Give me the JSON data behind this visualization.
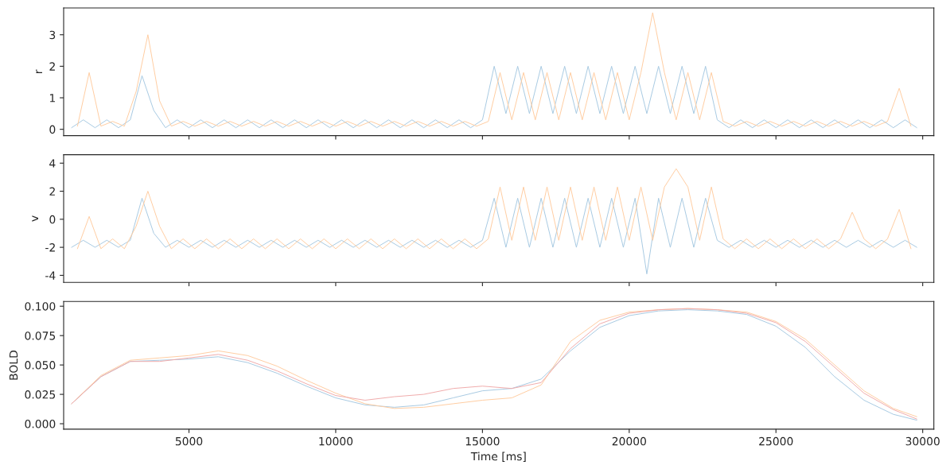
{
  "chart_data": [
    {
      "type": "line",
      "ylabel": "r",
      "xlim": [
        730,
        30380
      ],
      "ylim": [
        -0.2,
        3.85
      ],
      "yticks": [
        0,
        1,
        2,
        3
      ],
      "xticks": [
        5000,
        10000,
        15000,
        20000,
        25000,
        30000
      ],
      "tick_labels": "y",
      "x": [
        1000,
        1400,
        1800,
        2200,
        2600,
        3000,
        3400,
        3800,
        4200,
        4600,
        5000,
        5400,
        5800,
        6200,
        6600,
        7000,
        7400,
        7800,
        8200,
        8600,
        9000,
        9400,
        9800,
        10200,
        10600,
        11000,
        11400,
        11800,
        12200,
        12600,
        13000,
        13400,
        13800,
        14200,
        14600,
        15000,
        15400,
        15800,
        16200,
        16600,
        17000,
        17400,
        17800,
        18200,
        18600,
        19000,
        19400,
        19800,
        20200,
        20600,
        21000,
        21400,
        21800,
        22200,
        22600,
        23000,
        23400,
        23800,
        24200,
        24600,
        25000,
        25400,
        25800,
        26200,
        26600,
        27000,
        27400,
        27800,
        28200,
        28600,
        29000,
        29400,
        29800
      ],
      "series": [
        {
          "color": "#a5c8e1",
          "values": [
            0.05,
            0.3,
            0.05,
            0.3,
            0.05,
            0.3,
            1.7,
            0.6,
            0.05,
            0.3,
            0.05,
            0.3,
            0.05,
            0.3,
            0.05,
            0.3,
            0.05,
            0.3,
            0.05,
            0.3,
            0.05,
            0.3,
            0.05,
            0.3,
            0.05,
            0.3,
            0.05,
            0.3,
            0.05,
            0.3,
            0.05,
            0.3,
            0.05,
            0.3,
            0.05,
            0.3,
            2.0,
            0.5,
            2.0,
            0.5,
            2.0,
            0.5,
            2.0,
            0.5,
            2.0,
            0.5,
            2.0,
            0.5,
            2.0,
            0.5,
            2.0,
            0.5,
            2.0,
            0.5,
            2.0,
            0.3,
            0.05,
            0.3,
            0.05,
            0.3,
            0.05,
            0.3,
            0.05,
            0.3,
            0.05,
            0.3,
            0.05,
            0.3,
            0.05,
            0.3,
            0.05,
            0.3,
            0.05
          ]
        },
        {
          "color": "#ffcb9f",
          "x": [
            1200,
            1600,
            2000,
            2400,
            2800,
            3200,
            3600,
            4000,
            4400,
            4800,
            5200,
            5600,
            6000,
            6400,
            6800,
            7200,
            7600,
            8000,
            8400,
            8800,
            9200,
            9600,
            10000,
            10400,
            10800,
            11200,
            11600,
            12000,
            12400,
            12800,
            13200,
            13600,
            14000,
            14400,
            14800,
            15200,
            15600,
            16000,
            16400,
            16800,
            17200,
            17600,
            18000,
            18400,
            18800,
            19200,
            19600,
            20000,
            20400,
            20800,
            21200,
            21600,
            22000,
            22400,
            22800,
            23200,
            23600,
            24000,
            24400,
            24800,
            25200,
            25600,
            26000,
            26400,
            26800,
            27200,
            27600,
            28000,
            28400,
            28800,
            29200,
            29600
          ],
          "values": [
            0.1,
            1.8,
            0.1,
            0.25,
            0.1,
            1.2,
            3.0,
            0.9,
            0.1,
            0.25,
            0.1,
            0.25,
            0.1,
            0.25,
            0.1,
            0.25,
            0.1,
            0.25,
            0.1,
            0.25,
            0.1,
            0.25,
            0.1,
            0.25,
            0.1,
            0.25,
            0.1,
            0.25,
            0.1,
            0.25,
            0.1,
            0.25,
            0.1,
            0.25,
            0.1,
            0.25,
            1.8,
            0.3,
            1.8,
            0.3,
            1.8,
            0.3,
            1.8,
            0.3,
            1.8,
            0.3,
            1.8,
            0.3,
            1.8,
            3.7,
            1.8,
            0.3,
            1.8,
            0.3,
            1.8,
            0.25,
            0.1,
            0.25,
            0.1,
            0.25,
            0.1,
            0.25,
            0.1,
            0.25,
            0.1,
            0.25,
            0.1,
            0.25,
            0.1,
            0.25,
            1.3,
            0.1
          ]
        }
      ]
    },
    {
      "type": "line",
      "ylabel": "v",
      "xlim": [
        730,
        30380
      ],
      "ylim": [
        -4.5,
        4.6
      ],
      "yticks": [
        -4,
        -2,
        0,
        2,
        4
      ],
      "xticks": [
        5000,
        10000,
        15000,
        20000,
        25000,
        30000
      ],
      "tick_labels": "y",
      "x": [
        1000,
        1400,
        1800,
        2200,
        2600,
        3000,
        3400,
        3800,
        4200,
        4600,
        5000,
        5400,
        5800,
        6200,
        6600,
        7000,
        7400,
        7800,
        8200,
        8600,
        9000,
        9400,
        9800,
        10200,
        10600,
        11000,
        11400,
        11800,
        12200,
        12600,
        13000,
        13400,
        13800,
        14200,
        14600,
        15000,
        15400,
        15800,
        16200,
        16600,
        17000,
        17400,
        17800,
        18200,
        18600,
        19000,
        19400,
        19800,
        20200,
        20600,
        21000,
        21400,
        21800,
        22200,
        22600,
        23000,
        23400,
        23800,
        24200,
        24600,
        25000,
        25400,
        25800,
        26200,
        26600,
        27000,
        27400,
        27800,
        28200,
        28600,
        29000,
        29400,
        29800
      ],
      "series": [
        {
          "color": "#a5c8e1",
          "values": [
            -2.0,
            -1.5,
            -2.0,
            -1.5,
            -2.0,
            -1.5,
            1.5,
            -1.0,
            -2.0,
            -1.5,
            -2.0,
            -1.5,
            -2.0,
            -1.5,
            -2.0,
            -1.5,
            -2.0,
            -1.5,
            -2.0,
            -1.5,
            -2.0,
            -1.5,
            -2.0,
            -1.5,
            -2.0,
            -1.5,
            -2.0,
            -1.5,
            -2.0,
            -1.5,
            -2.0,
            -1.5,
            -2.0,
            -1.5,
            -2.0,
            -1.5,
            1.5,
            -2.0,
            1.5,
            -2.0,
            1.5,
            -2.0,
            1.5,
            -2.0,
            1.5,
            -2.0,
            1.5,
            -2.0,
            1.5,
            -3.9,
            1.5,
            -2.0,
            1.5,
            -2.0,
            1.5,
            -1.5,
            -2.0,
            -1.5,
            -2.0,
            -1.5,
            -2.0,
            -1.5,
            -2.0,
            -1.5,
            -2.0,
            -1.5,
            -2.0,
            -1.5,
            -2.0,
            -1.5,
            -2.0,
            -1.5,
            -2.0
          ]
        },
        {
          "color": "#ffcb9f",
          "x": [
            1200,
            1600,
            2000,
            2400,
            2800,
            3200,
            3600,
            4000,
            4400,
            4800,
            5200,
            5600,
            6000,
            6400,
            6800,
            7200,
            7600,
            8000,
            8400,
            8800,
            9200,
            9600,
            10000,
            10400,
            10800,
            11200,
            11600,
            12000,
            12400,
            12800,
            13200,
            13600,
            14000,
            14400,
            14800,
            15200,
            15600,
            16000,
            16400,
            16800,
            17200,
            17600,
            18000,
            18400,
            18800,
            19200,
            19600,
            20000,
            20400,
            20800,
            21200,
            21600,
            22000,
            22400,
            22800,
            23200,
            23600,
            24000,
            24400,
            24800,
            25200,
            25600,
            26000,
            26400,
            26800,
            27200,
            27600,
            28000,
            28400,
            28800,
            29200,
            29600
          ],
          "values": [
            -2.1,
            0.2,
            -2.1,
            -1.4,
            -2.1,
            -0.5,
            2.0,
            -0.5,
            -2.1,
            -1.4,
            -2.1,
            -1.4,
            -2.1,
            -1.4,
            -2.1,
            -1.4,
            -2.1,
            -1.4,
            -2.1,
            -1.4,
            -2.1,
            -1.4,
            -2.1,
            -1.4,
            -2.1,
            -1.4,
            -2.1,
            -1.4,
            -2.1,
            -1.4,
            -2.1,
            -1.4,
            -2.1,
            -1.4,
            -2.1,
            -1.4,
            2.3,
            -1.5,
            2.3,
            -1.5,
            2.3,
            -1.5,
            2.3,
            -1.5,
            2.3,
            -1.5,
            2.3,
            -1.5,
            2.3,
            -1.5,
            2.3,
            3.6,
            2.3,
            -1.5,
            2.3,
            -1.4,
            -2.1,
            -1.4,
            -2.1,
            -1.4,
            -2.1,
            -1.4,
            -2.1,
            -1.4,
            -2.1,
            -1.4,
            0.5,
            -1.4,
            -2.1,
            -1.4,
            0.7,
            -2.1
          ]
        }
      ]
    },
    {
      "type": "line",
      "xlabel": "Time [ms]",
      "ylabel": "BOLD",
      "xlim": [
        730,
        30380
      ],
      "ylim": [
        -0.0046,
        0.104
      ],
      "xticks": [
        5000,
        10000,
        15000,
        20000,
        25000,
        30000
      ],
      "yticks": [
        {
          "value": 0,
          "label": "0.000"
        },
        {
          "value": 0.025,
          "label": "0.025"
        },
        {
          "value": 0.05,
          "label": "0.050"
        },
        {
          "value": 0.075,
          "label": "0.075"
        },
        {
          "value": 0.1,
          "label": "0.100"
        }
      ],
      "x": [
        1000,
        2000,
        3000,
        4000,
        5000,
        6000,
        7000,
        8000,
        9000,
        10000,
        11000,
        12000,
        13000,
        14000,
        15000,
        16000,
        17000,
        18000,
        19000,
        20000,
        21000,
        22000,
        23000,
        24000,
        25000,
        26000,
        27000,
        28000,
        29000,
        29800
      ],
      "series": [
        {
          "color": "#a5c8e1",
          "values": [
            0.017,
            0.04,
            0.053,
            0.054,
            0.055,
            0.057,
            0.052,
            0.043,
            0.032,
            0.022,
            0.016,
            0.014,
            0.016,
            0.022,
            0.028,
            0.03,
            0.038,
            0.062,
            0.082,
            0.092,
            0.096,
            0.097,
            0.096,
            0.093,
            0.083,
            0.065,
            0.04,
            0.02,
            0.008,
            0.003
          ]
        },
        {
          "color": "#ffcb9f",
          "values": [
            0.017,
            0.041,
            0.054,
            0.056,
            0.058,
            0.062,
            0.058,
            0.049,
            0.037,
            0.026,
            0.017,
            0.013,
            0.014,
            0.017,
            0.02,
            0.022,
            0.033,
            0.07,
            0.088,
            0.095,
            0.097,
            0.098,
            0.097,
            0.095,
            0.087,
            0.072,
            0.05,
            0.028,
            0.013,
            0.006
          ]
        },
        {
          "color": "#efa9a9",
          "values": [
            0.017,
            0.04,
            0.053,
            0.053,
            0.056,
            0.059,
            0.054,
            0.045,
            0.034,
            0.024,
            0.02,
            0.023,
            0.025,
            0.03,
            0.032,
            0.03,
            0.035,
            0.064,
            0.085,
            0.094,
            0.097,
            0.098,
            0.097,
            0.094,
            0.086,
            0.07,
            0.048,
            0.026,
            0.012,
            0.004
          ]
        }
      ]
    }
  ]
}
